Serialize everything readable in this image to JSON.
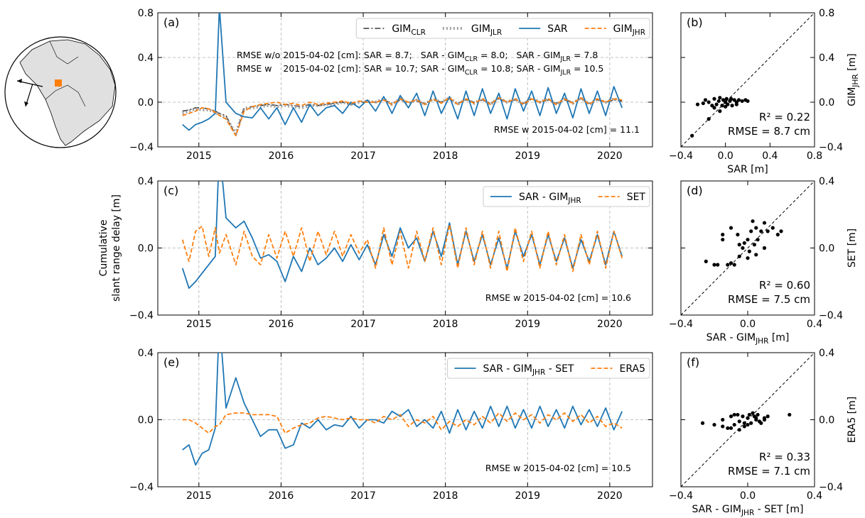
{
  "chart_data": [
    {
      "type": "line",
      "label": "(a)",
      "x": [
        2014.8,
        2014.88,
        2014.96,
        2015.04,
        2015.12,
        2015.2,
        2015.25,
        2015.33,
        2015.45,
        2015.55,
        2015.65,
        2015.75,
        2015.85,
        2015.95,
        2016.05,
        2016.15,
        2016.25,
        2016.35,
        2016.45,
        2016.55,
        2016.65,
        2016.75,
        2016.85,
        2016.95,
        2017.05,
        2017.15,
        2017.25,
        2017.35,
        2017.45,
        2017.55,
        2017.65,
        2017.75,
        2017.85,
        2017.95,
        2018.05,
        2018.15,
        2018.25,
        2018.35,
        2018.45,
        2018.55,
        2018.65,
        2018.75,
        2018.85,
        2018.95,
        2019.05,
        2019.15,
        2019.25,
        2019.35,
        2019.45,
        2019.55,
        2019.65,
        2019.75,
        2019.85,
        2019.95,
        2020.05,
        2020.15
      ],
      "xlim": [
        2014.5,
        2020.52
      ],
      "xticks": [
        2015,
        2016,
        2017,
        2018,
        2019,
        2020
      ],
      "ylim": [
        -0.4,
        0.8
      ],
      "yticks": [
        {
          "value": -0.4,
          "label": "−0.4"
        },
        {
          "value": 0,
          "label": "0.0"
        },
        0.4,
        0.8
      ],
      "grid": true,
      "legend": "upper right",
      "series": [
        {
          "name": "GIM_CLR",
          "color": "#3a3a3a",
          "style": "dashdot",
          "values": [
            -0.08,
            -0.07,
            -0.05,
            -0.05,
            -0.06,
            -0.08,
            -0.1,
            -0.12,
            -0.3,
            -0.05,
            -0.04,
            -0.03,
            -0.02,
            -0.03,
            -0.02,
            -0.03,
            -0.04,
            -0.02,
            -0.03,
            -0.02,
            -0.01,
            0.0,
            -0.02,
            0.0,
            0.0,
            0.0,
            0.02,
            -0.01,
            0.02,
            0.0,
            0.01,
            -0.01,
            0.02,
            0.0,
            0.03,
            -0.01,
            0.02,
            0.0,
            0.02,
            -0.01,
            0.03,
            0.0,
            0.02,
            -0.01,
            0.03,
            0.0,
            0.02,
            -0.01,
            0.02,
            0.0,
            0.03,
            -0.01,
            0.02,
            0.0,
            0.02,
            0.01
          ]
        },
        {
          "name": "GIM_JLR",
          "color": "#a0a0a0",
          "style": "dotted",
          "values": [
            -0.1,
            -0.08,
            -0.06,
            -0.07,
            -0.07,
            -0.09,
            -0.11,
            -0.14,
            -0.28,
            -0.06,
            -0.05,
            -0.04,
            -0.03,
            -0.04,
            -0.03,
            -0.04,
            -0.05,
            -0.03,
            -0.03,
            -0.02,
            -0.02,
            0.0,
            -0.02,
            0.0,
            0.01,
            0.0,
            0.03,
            -0.02,
            0.03,
            -0.01,
            0.02,
            -0.02,
            0.03,
            0.0,
            0.04,
            -0.02,
            0.03,
            -0.01,
            0.03,
            -0.02,
            0.04,
            0.0,
            0.03,
            -0.02,
            0.04,
            0.0,
            0.03,
            -0.02,
            0.03,
            -0.01,
            0.04,
            -0.02,
            0.03,
            0.0,
            0.03,
            0.01
          ]
        },
        {
          "name": "SAR",
          "color": "#1f77b4",
          "style": "solid",
          "values": [
            -0.2,
            -0.25,
            -0.2,
            -0.18,
            -0.15,
            -0.1,
            0.85,
            0.0,
            -0.1,
            -0.13,
            -0.14,
            -0.05,
            -0.15,
            -0.05,
            -0.2,
            -0.05,
            -0.18,
            -0.02,
            -0.12,
            -0.05,
            -0.03,
            -0.1,
            0.0,
            -0.05,
            0.02,
            -0.08,
            0.05,
            -0.1,
            0.06,
            -0.05,
            0.08,
            -0.12,
            0.1,
            -0.1,
            0.05,
            -0.15,
            0.1,
            -0.12,
            0.12,
            -0.1,
            0.08,
            -0.15,
            0.12,
            -0.08,
            0.1,
            -0.12,
            0.13,
            -0.1,
            0.08,
            -0.14,
            0.12,
            -0.1,
            0.1,
            -0.12,
            0.14,
            -0.05
          ]
        },
        {
          "name": "GIM_JHR",
          "color": "#ff7f0e",
          "style": "dashed",
          "values": [
            -0.12,
            -0.1,
            -0.08,
            -0.05,
            -0.06,
            -0.09,
            -0.12,
            -0.15,
            -0.3,
            -0.08,
            -0.04,
            -0.02,
            -0.01,
            0.0,
            -0.02,
            -0.01,
            -0.03,
            0.0,
            -0.02,
            -0.01,
            0.0,
            0.01,
            -0.01,
            0.01,
            0.0,
            0.0,
            0.02,
            -0.02,
            0.03,
            0.0,
            0.02,
            -0.02,
            0.03,
            -0.01,
            0.04,
            -0.02,
            0.03,
            -0.01,
            0.03,
            -0.02,
            0.04,
            0.0,
            0.03,
            -0.02,
            0.03,
            0.0,
            0.03,
            -0.02,
            0.03,
            -0.01,
            0.04,
            -0.02,
            0.03,
            0.0,
            0.03,
            0.02
          ]
        }
      ],
      "annotations": [
        "RMSE w/o 2015-04-02 [cm]: SAR = 8.7;   SAR - GIM_CLR = 8.0;   SAR - GIM_JLR = 7.8",
        "RMSE w    2015-04-02 [cm]: SAR = 10.7; SAR - GIM_CLR = 10.8; SAR - GIM_JLR = 10.5",
        "RMSE w 2015-04-02 [cm] = 11.1"
      ]
    },
    {
      "type": "scatter",
      "label": "(b)",
      "x": [
        -0.25,
        -0.2,
        -0.18,
        -0.15,
        -0.12,
        -0.1,
        -0.08,
        -0.06,
        -0.05,
        -0.03,
        -0.02,
        0.0,
        0.01,
        0.02,
        0.04,
        0.05,
        0.06,
        0.08,
        0.1,
        0.12,
        0.15,
        0.18,
        0.2,
        -0.1,
        -0.05,
        0.0,
        0.05,
        0.1,
        -0.15,
        -0.3
      ],
      "y": [
        -0.02,
        -0.01,
        0.02,
        0.0,
        -0.03,
        0.03,
        -0.02,
        0.01,
        0.04,
        -0.03,
        0.02,
        0.0,
        0.03,
        -0.02,
        0.01,
        0.03,
        -0.03,
        0.02,
        0.0,
        0.02,
        0.01,
        0.02,
        0.01,
        -0.05,
        -0.08,
        -0.04,
        0.03,
        -0.02,
        -0.15,
        -0.3
      ],
      "color": "#000000",
      "xlim": [
        -0.4,
        0.8
      ],
      "xticks": [
        {
          "value": -0.4,
          "label": "−0.4"
        },
        {
          "value": 0,
          "label": "0.0"
        },
        0.4,
        0.8
      ],
      "ylim": [
        -0.4,
        0.8
      ],
      "yticks": [
        {
          "value": -0.4,
          "label": "−0.4"
        },
        {
          "value": 0,
          "label": "0.0"
        },
        0.4,
        0.8
      ],
      "xlabel": "SAR [m]",
      "ylabel": "GIM_JHR [m]",
      "annotations": [
        "R² = 0.22",
        "RMSE = 8.7 cm"
      ]
    },
    {
      "type": "line",
      "label": "(c)",
      "ylabel": [
        "Cumulative",
        "slant range delay [m]"
      ],
      "x": [
        2014.8,
        2014.88,
        2014.96,
        2015.04,
        2015.12,
        2015.2,
        2015.25,
        2015.33,
        2015.45,
        2015.55,
        2015.65,
        2015.75,
        2015.85,
        2015.95,
        2016.05,
        2016.15,
        2016.25,
        2016.35,
        2016.45,
        2016.55,
        2016.65,
        2016.75,
        2016.85,
        2016.95,
        2017.05,
        2017.15,
        2017.25,
        2017.35,
        2017.45,
        2017.55,
        2017.65,
        2017.75,
        2017.85,
        2017.95,
        2018.05,
        2018.15,
        2018.25,
        2018.35,
        2018.45,
        2018.55,
        2018.65,
        2018.75,
        2018.85,
        2018.95,
        2019.05,
        2019.15,
        2019.25,
        2019.35,
        2019.45,
        2019.55,
        2019.65,
        2019.75,
        2019.85,
        2019.95,
        2020.05,
        2020.15
      ],
      "xlim": [
        2014.5,
        2020.52
      ],
      "xticks": [
        2015,
        2016,
        2017,
        2018,
        2019,
        2020
      ],
      "ylim": [
        -0.4,
        0.4
      ],
      "yticks": [
        {
          "value": -0.4,
          "label": "−0.4"
        },
        {
          "value": 0,
          "label": "0.0"
        },
        0.4
      ],
      "grid": true,
      "legend": "upper right",
      "series": [
        {
          "name": "SAR - GIM_JHR",
          "color": "#1f77b4",
          "style": "solid",
          "values": [
            -0.12,
            -0.24,
            -0.2,
            -0.15,
            -0.1,
            -0.05,
            0.6,
            0.18,
            0.12,
            0.16,
            0.06,
            -0.06,
            -0.04,
            -0.08,
            -0.2,
            -0.05,
            -0.14,
            0.0,
            -0.1,
            -0.06,
            0.0,
            -0.08,
            0.02,
            -0.07,
            0.02,
            -0.1,
            0.08,
            -0.05,
            0.12,
            0.0,
            0.06,
            -0.08,
            0.1,
            -0.05,
            0.15,
            -0.1,
            0.1,
            -0.08,
            0.08,
            -0.1,
            0.06,
            -0.12,
            0.1,
            -0.05,
            0.08,
            -0.1,
            0.08,
            -0.08,
            0.06,
            -0.12,
            0.05,
            -0.08,
            0.08,
            -0.1,
            0.1,
            -0.05
          ]
        },
        {
          "name": "SET",
          "color": "#ff7f0e",
          "style": "dashed",
          "values": [
            0.05,
            -0.08,
            0.1,
            0.13,
            -0.05,
            0.12,
            -0.03,
            0.08,
            -0.1,
            0.1,
            -0.05,
            -0.1,
            0.08,
            -0.06,
            0.1,
            -0.05,
            0.12,
            -0.08,
            0.1,
            -0.04,
            0.1,
            -0.05,
            0.08,
            -0.03,
            0.05,
            -0.12,
            0.12,
            -0.1,
            0.1,
            -0.12,
            0.1,
            -0.08,
            0.12,
            -0.1,
            0.14,
            -0.12,
            0.12,
            -0.1,
            0.1,
            -0.12,
            0.1,
            -0.14,
            0.12,
            -0.08,
            0.1,
            -0.12,
            0.1,
            -0.1,
            0.08,
            -0.14,
            0.08,
            -0.1,
            0.1,
            -0.12,
            0.1,
            -0.06
          ]
        }
      ],
      "annotations": [
        "RMSE w 2015-04-02 [cm] = 10.6"
      ]
    },
    {
      "type": "scatter",
      "label": "(d)",
      "x": [
        -0.25,
        -0.2,
        -0.18,
        -0.15,
        -0.12,
        -0.1,
        -0.08,
        -0.06,
        -0.05,
        -0.03,
        -0.02,
        0.0,
        0.01,
        0.02,
        0.04,
        0.05,
        0.06,
        0.08,
        0.1,
        0.12,
        0.15,
        0.18,
        0.2,
        -0.15,
        -0.1,
        0.0,
        0.05,
        0.1,
        -0.05,
        0.03
      ],
      "y": [
        -0.08,
        -0.1,
        -0.1,
        0.05,
        -0.1,
        -0.09,
        -0.1,
        0.08,
        -0.05,
        0.0,
        0.03,
        0.05,
        -0.02,
        0.1,
        0.02,
        0.12,
        0.05,
        0.1,
        0.15,
        0.1,
        0.12,
        0.08,
        0.1,
        0.08,
        0.12,
        -0.06,
        -0.04,
        0.0,
        0.02,
        0.16
      ],
      "color": "#000000",
      "xlim": [
        -0.4,
        0.4
      ],
      "xticks": [
        {
          "value": -0.4,
          "label": "−0.4"
        },
        {
          "value": 0,
          "label": "0.0"
        },
        0.4
      ],
      "ylim": [
        -0.4,
        0.4
      ],
      "yticks": [
        {
          "value": -0.4,
          "label": "−0.4"
        },
        {
          "value": 0,
          "label": "0.0"
        },
        0.4
      ],
      "xlabel": "SAR - GIM_JHR [m]",
      "ylabel": "SET [m]",
      "annotations": [
        "R² = 0.60",
        "RMSE = 7.5 cm"
      ]
    },
    {
      "type": "line",
      "label": "(e)",
      "x": [
        2014.8,
        2014.88,
        2014.96,
        2015.04,
        2015.12,
        2015.2,
        2015.25,
        2015.33,
        2015.45,
        2015.55,
        2015.65,
        2015.75,
        2015.85,
        2015.95,
        2016.05,
        2016.15,
        2016.25,
        2016.35,
        2016.45,
        2016.55,
        2016.65,
        2016.75,
        2016.85,
        2016.95,
        2017.05,
        2017.15,
        2017.25,
        2017.35,
        2017.45,
        2017.55,
        2017.65,
        2017.75,
        2017.85,
        2017.95,
        2018.05,
        2018.15,
        2018.25,
        2018.35,
        2018.45,
        2018.55,
        2018.65,
        2018.75,
        2018.85,
        2018.95,
        2019.05,
        2019.15,
        2019.25,
        2019.35,
        2019.45,
        2019.55,
        2019.65,
        2019.75,
        2019.85,
        2019.95,
        2020.05,
        2020.15
      ],
      "xlim": [
        2014.5,
        2020.52
      ],
      "xticks": [
        2015,
        2016,
        2017,
        2018,
        2019,
        2020
      ],
      "ylim": [
        -0.4,
        0.4
      ],
      "yticks": [
        {
          "value": -0.4,
          "label": "−0.4"
        },
        {
          "value": 0,
          "label": "0.0"
        },
        0.4
      ],
      "grid": true,
      "legend": "upper right",
      "series": [
        {
          "name": "SAR - GIM_JHR - SET",
          "color": "#1f77b4",
          "style": "solid",
          "values": [
            -0.18,
            -0.15,
            -0.27,
            -0.2,
            -0.18,
            -0.05,
            0.6,
            0.07,
            0.25,
            0.1,
            0.0,
            -0.1,
            -0.06,
            -0.06,
            -0.17,
            -0.15,
            -0.02,
            -0.05,
            0.0,
            -0.06,
            -0.03,
            -0.04,
            0.02,
            -0.05,
            0.0,
            0.0,
            -0.02,
            0.05,
            0.02,
            0.06,
            -0.04,
            0.0,
            -0.05,
            0.05,
            -0.08,
            0.06,
            -0.06,
            0.05,
            -0.05,
            0.08,
            -0.04,
            0.08,
            -0.05,
            0.06,
            -0.05,
            0.08,
            -0.04,
            0.06,
            -0.05,
            0.08,
            -0.03,
            0.06,
            -0.04,
            0.07,
            -0.06,
            0.05
          ]
        },
        {
          "name": "ERA5",
          "color": "#ff7f0e",
          "style": "dashed",
          "values": [
            0.0,
            0.0,
            -0.02,
            -0.05,
            -0.08,
            -0.04,
            -0.03,
            0.03,
            0.04,
            0.04,
            0.03,
            0.03,
            0.03,
            0.02,
            -0.08,
            -0.05,
            -0.03,
            -0.02,
            0.01,
            0.02,
            0.01,
            0.0,
            0.01,
            0.0,
            0.0,
            -0.02,
            0.02,
            0.0,
            0.03,
            -0.04,
            0.0,
            -0.02,
            0.02,
            -0.06,
            -0.01,
            -0.04,
            0.0,
            -0.03,
            0.02,
            -0.02,
            0.04,
            -0.01,
            0.04,
            0.0,
            0.03,
            -0.02,
            0.03,
            0.0,
            0.04,
            -0.01,
            0.03,
            -0.02,
            0.02,
            -0.04,
            -0.02,
            -0.05
          ]
        }
      ],
      "annotations": [
        "RMSE w 2015-04-02 [cm] = 10.5"
      ]
    },
    {
      "type": "scatter",
      "label": "(f)",
      "x": [
        -0.27,
        -0.2,
        -0.15,
        -0.12,
        -0.1,
        -0.08,
        -0.06,
        -0.05,
        -0.03,
        -0.02,
        0.0,
        0.01,
        0.02,
        0.04,
        0.05,
        0.06,
        0.08,
        0.1,
        0.12,
        0.25,
        -0.1,
        -0.05,
        0.0,
        0.05,
        0.1,
        -0.08,
        -0.02,
        0.03,
        0.07,
        -0.15
      ],
      "y": [
        -0.02,
        -0.03,
        0.0,
        -0.05,
        0.02,
        -0.03,
        0.03,
        -0.01,
        0.02,
        -0.04,
        0.01,
        0.03,
        -0.02,
        0.02,
        0.0,
        0.03,
        -0.02,
        0.01,
        0.02,
        0.03,
        -0.05,
        -0.06,
        -0.03,
        0.01,
        0.0,
        0.03,
        -0.02,
        0.04,
        -0.01,
        -0.04
      ],
      "color": "#000000",
      "xlim": [
        -0.4,
        0.4
      ],
      "xticks": [
        {
          "value": -0.4,
          "label": "−0.4"
        },
        {
          "value": 0,
          "label": "0.0"
        },
        0.4
      ],
      "ylim": [
        -0.4,
        0.4
      ],
      "yticks": [
        {
          "value": -0.4,
          "label": "−0.4"
        },
        {
          "value": 0,
          "label": "0.0"
        },
        0.4
      ],
      "xlabel": "SAR - GIM_JHR - SET [m]",
      "ylabel": "ERA5 [m]",
      "annotations": [
        "R² = 0.33",
        "RMSE = 7.1 cm"
      ]
    }
  ]
}
